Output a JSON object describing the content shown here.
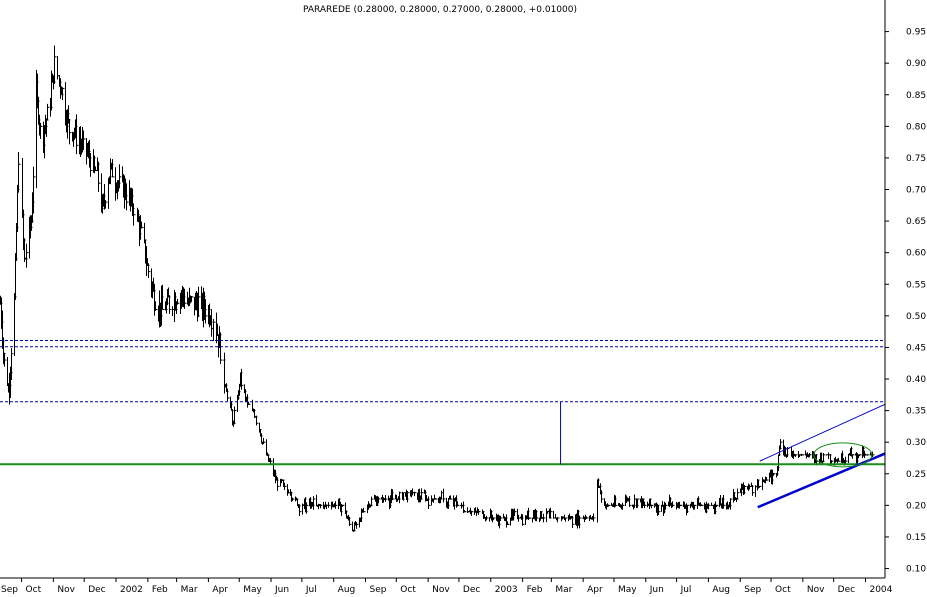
{
  "chart_data": {
    "type": "line",
    "style": "ohlc-bars",
    "title": "PARAREDE (0.28000, 0.28000, 0.27000, 0.28000, +0.01000)",
    "xlabel": "",
    "ylabel": "",
    "ylim": [
      0.085,
      1.0
    ],
    "x_range": [
      "2001-09-10",
      "2004-01-20"
    ],
    "y_ticks": [
      "0.10",
      "0.15",
      "0.20",
      "0.25",
      "0.30",
      "0.35",
      "0.40",
      "0.45",
      "0.50",
      "0.55",
      "0.60",
      "0.65",
      "0.70",
      "0.75",
      "0.80",
      "0.85",
      "0.90",
      "0.95"
    ],
    "x_ticks": [
      {
        "label": "Sep",
        "date": "2001-09-01"
      },
      {
        "label": "Oct",
        "date": "2001-10-01"
      },
      {
        "label": "Nov",
        "date": "2001-11-01"
      },
      {
        "label": "Dec",
        "date": "2001-12-01"
      },
      {
        "label": "2002",
        "date": "2002-01-01"
      },
      {
        "label": "Feb",
        "date": "2002-02-01"
      },
      {
        "label": "Mar",
        "date": "2002-03-01"
      },
      {
        "label": "Apr",
        "date": "2002-04-01"
      },
      {
        "label": "May",
        "date": "2002-05-01"
      },
      {
        "label": "Jun",
        "date": "2002-06-01"
      },
      {
        "label": "Jul",
        "date": "2002-07-01"
      },
      {
        "label": "Aug",
        "date": "2002-08-01"
      },
      {
        "label": "Sep",
        "date": "2002-09-01"
      },
      {
        "label": "Oct",
        "date": "2002-10-01"
      },
      {
        "label": "Nov",
        "date": "2002-11-01"
      },
      {
        "label": "Dec",
        "date": "2002-12-01"
      },
      {
        "label": "2003",
        "date": "2003-01-01"
      },
      {
        "label": "Feb",
        "date": "2003-02-01"
      },
      {
        "label": "Mar",
        "date": "2003-03-01"
      },
      {
        "label": "Apr",
        "date": "2003-04-01"
      },
      {
        "label": "May",
        "date": "2003-05-01"
      },
      {
        "label": "Jun",
        "date": "2003-06-01"
      },
      {
        "label": "Jul",
        "date": "2003-07-01"
      },
      {
        "label": "Aug",
        "date": "2003-08-01"
      },
      {
        "label": "Sep",
        "date": "2003-09-01"
      },
      {
        "label": "Oct",
        "date": "2003-10-01"
      },
      {
        "label": "Nov",
        "date": "2003-11-01"
      },
      {
        "label": "Dec",
        "date": "2003-12-01"
      },
      {
        "label": "2004",
        "date": "2004-01-01"
      }
    ],
    "series": [
      {
        "values": [
          {
            "date": "2001-09-10",
            "price": 0.52
          },
          {
            "date": "2001-09-14",
            "price": 0.42
          },
          {
            "date": "2001-09-18",
            "price": 0.38
          },
          {
            "date": "2001-09-24",
            "price": 0.52
          },
          {
            "date": "2001-09-28",
            "price": 0.75
          },
          {
            "date": "2001-10-03",
            "price": 0.58
          },
          {
            "date": "2001-10-10",
            "price": 0.65
          },
          {
            "date": "2001-10-15",
            "price": 0.85
          },
          {
            "date": "2001-10-20",
            "price": 0.78
          },
          {
            "date": "2001-10-27",
            "price": 0.82
          },
          {
            "date": "2001-11-02",
            "price": 0.9
          },
          {
            "date": "2001-11-08",
            "price": 0.86
          },
          {
            "date": "2001-11-15",
            "price": 0.8
          },
          {
            "date": "2001-11-22",
            "price": 0.79
          },
          {
            "date": "2001-11-29",
            "price": 0.77
          },
          {
            "date": "2001-12-06",
            "price": 0.75
          },
          {
            "date": "2001-12-13",
            "price": 0.72
          },
          {
            "date": "2001-12-18",
            "price": 0.67
          },
          {
            "date": "2001-12-26",
            "price": 0.73
          },
          {
            "date": "2002-01-03",
            "price": 0.71
          },
          {
            "date": "2002-01-10",
            "price": 0.7
          },
          {
            "date": "2002-01-18",
            "price": 0.67
          },
          {
            "date": "2002-01-25",
            "price": 0.63
          },
          {
            "date": "2002-02-01",
            "price": 0.57
          },
          {
            "date": "2002-02-07",
            "price": 0.53
          },
          {
            "date": "2002-02-14",
            "price": 0.51
          },
          {
            "date": "2002-02-21",
            "price": 0.52
          },
          {
            "date": "2002-03-01",
            "price": 0.53
          },
          {
            "date": "2002-03-08",
            "price": 0.53
          },
          {
            "date": "2002-03-15",
            "price": 0.52
          },
          {
            "date": "2002-03-22",
            "price": 0.52
          },
          {
            "date": "2002-03-29",
            "price": 0.51
          },
          {
            "date": "2002-04-05",
            "price": 0.5
          },
          {
            "date": "2002-04-12",
            "price": 0.45
          },
          {
            "date": "2002-04-18",
            "price": 0.38
          },
          {
            "date": "2002-04-25",
            "price": 0.33
          },
          {
            "date": "2002-05-02",
            "price": 0.4
          },
          {
            "date": "2002-05-09",
            "price": 0.36
          },
          {
            "date": "2002-05-16",
            "price": 0.34
          },
          {
            "date": "2002-05-23",
            "price": 0.3
          },
          {
            "date": "2002-05-30",
            "price": 0.27
          },
          {
            "date": "2002-06-06",
            "price": 0.24
          },
          {
            "date": "2002-06-13",
            "price": 0.23
          },
          {
            "date": "2002-06-20",
            "price": 0.22
          },
          {
            "date": "2002-06-27",
            "price": 0.2
          },
          {
            "date": "2002-07-05",
            "price": 0.2
          },
          {
            "date": "2002-07-15",
            "price": 0.2
          },
          {
            "date": "2002-07-25",
            "price": 0.2
          },
          {
            "date": "2002-08-05",
            "price": 0.2
          },
          {
            "date": "2002-08-12",
            "price": 0.19
          },
          {
            "date": "2002-08-18",
            "price": 0.16
          },
          {
            "date": "2002-08-25",
            "price": 0.17
          },
          {
            "date": "2002-09-01",
            "price": 0.2
          },
          {
            "date": "2002-09-08",
            "price": 0.21
          },
          {
            "date": "2002-09-20",
            "price": 0.21
          },
          {
            "date": "2002-10-01",
            "price": 0.21
          },
          {
            "date": "2002-10-15",
            "price": 0.22
          },
          {
            "date": "2002-11-01",
            "price": 0.21
          },
          {
            "date": "2002-11-15",
            "price": 0.21
          },
          {
            "date": "2002-12-01",
            "price": 0.2
          },
          {
            "date": "2002-12-15",
            "price": 0.19
          },
          {
            "date": "2003-01-01",
            "price": 0.18
          },
          {
            "date": "2003-01-15",
            "price": 0.18
          },
          {
            "date": "2003-02-01",
            "price": 0.18
          },
          {
            "date": "2003-02-15",
            "price": 0.19
          },
          {
            "date": "2003-03-01",
            "price": 0.18
          },
          {
            "date": "2003-03-15",
            "price": 0.18
          },
          {
            "date": "2003-04-01",
            "price": 0.18
          },
          {
            "date": "2003-04-12",
            "price": 0.18
          },
          {
            "date": "2003-04-14",
            "price": 0.24
          },
          {
            "date": "2003-04-20",
            "price": 0.2
          },
          {
            "date": "2003-05-01",
            "price": 0.2
          },
          {
            "date": "2003-05-15",
            "price": 0.21
          },
          {
            "date": "2003-06-01",
            "price": 0.2
          },
          {
            "date": "2003-06-15",
            "price": 0.2
          },
          {
            "date": "2003-07-01",
            "price": 0.2
          },
          {
            "date": "2003-07-15",
            "price": 0.2
          },
          {
            "date": "2003-08-01",
            "price": 0.2
          },
          {
            "date": "2003-08-15",
            "price": 0.2
          },
          {
            "date": "2003-08-25",
            "price": 0.21
          },
          {
            "date": "2003-09-05",
            "price": 0.23
          },
          {
            "date": "2003-09-15",
            "price": 0.23
          },
          {
            "date": "2003-09-25",
            "price": 0.24
          },
          {
            "date": "2003-10-05",
            "price": 0.25
          },
          {
            "date": "2003-10-10",
            "price": 0.3
          },
          {
            "date": "2003-10-15",
            "price": 0.28
          },
          {
            "date": "2003-10-25",
            "price": 0.28
          },
          {
            "date": "2003-11-05",
            "price": 0.28
          },
          {
            "date": "2003-11-15",
            "price": 0.27
          },
          {
            "date": "2003-11-25",
            "price": 0.28
          },
          {
            "date": "2003-12-05",
            "price": 0.27
          },
          {
            "date": "2003-12-15",
            "price": 0.28
          },
          {
            "date": "2004-01-08",
            "price": 0.28
          }
        ]
      }
    ],
    "annotations": {
      "horizontal_solid": [
        {
          "y": 0.265,
          "color": "#1a8c1a"
        }
      ],
      "horizontal_dashed": [
        {
          "y": 0.461,
          "color": "#0000aa"
        },
        {
          "y": 0.451,
          "color": "#0000aa"
        },
        {
          "y": 0.364,
          "color": "#0000aa"
        }
      ],
      "vertical_segment": {
        "date": "2003-03-10",
        "y_from": 0.364,
        "y_to": 0.265,
        "color": "#0000aa"
      },
      "trendlines": [
        {
          "from": {
            "date": "2003-09-20",
            "y": 0.27
          },
          "to": {
            "date": "2004-01-20",
            "y": 0.36
          },
          "color": "#0000cc"
        },
        {
          "from": {
            "date": "2003-09-18",
            "y": 0.197
          },
          "to": {
            "date": "2004-01-20",
            "y": 0.282
          },
          "color": "#0000cc"
        }
      ],
      "ellipse": {
        "center": {
          "date": "2003-12-10",
          "y": 0.28
        },
        "color": "#1a8c1a"
      }
    },
    "grid": false,
    "legend": "none",
    "colors": {
      "price": "#000000",
      "axis": "#000000",
      "background": "#ffffff"
    }
  }
}
